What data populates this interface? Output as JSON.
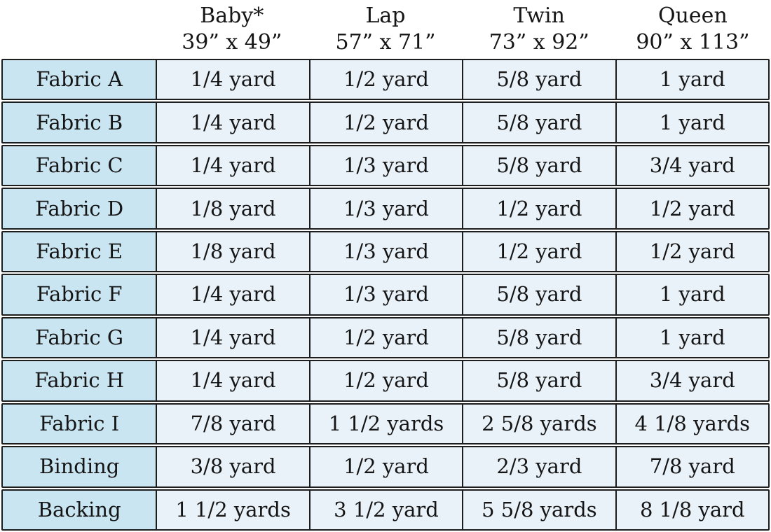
{
  "header": {
    "row_label_column": "",
    "columns": [
      {
        "name": "Baby*",
        "size": "39” x 49”"
      },
      {
        "name": "Lap",
        "size": "57” x 71”"
      },
      {
        "name": "Twin",
        "size": "73” x 92”"
      },
      {
        "name": "Queen",
        "size": "90” x 113”"
      }
    ]
  },
  "rows": [
    {
      "label": "Fabric A",
      "values": [
        "1/4 yard",
        "1/2 yard",
        "5/8 yard",
        "1 yard"
      ]
    },
    {
      "label": "Fabric B",
      "values": [
        "1/4 yard",
        "1/2 yard",
        "5/8 yard",
        "1 yard"
      ]
    },
    {
      "label": "Fabric C",
      "values": [
        "1/4 yard",
        "1/3 yard",
        "5/8 yard",
        "3/4 yard"
      ]
    },
    {
      "label": "Fabric D",
      "values": [
        "1/8 yard",
        "1/3 yard",
        "1/2 yard",
        "1/2 yard"
      ]
    },
    {
      "label": "Fabric E",
      "values": [
        "1/8 yard",
        "1/3 yard",
        "1/2 yard",
        "1/2 yard"
      ]
    },
    {
      "label": "Fabric F",
      "values": [
        "1/4 yard",
        "1/3 yard",
        "5/8 yard",
        "1 yard"
      ]
    },
    {
      "label": "Fabric G",
      "values": [
        "1/4 yard",
        "1/2 yard",
        "5/8 yard",
        "1 yard"
      ]
    },
    {
      "label": "Fabric H",
      "values": [
        "1/4 yard",
        "1/2 yard",
        "5/8 yard",
        "3/4 yard"
      ]
    },
    {
      "label": "Fabric I",
      "values": [
        "7/8 yard",
        "1 1/2 yards",
        "2 5/8 yards",
        "4 1/8 yards"
      ]
    },
    {
      "label": "Binding",
      "values": [
        "3/8 yard",
        "1/2 yard",
        "2/3 yard",
        "7/8 yard"
      ]
    },
    {
      "label": "Backing",
      "values": [
        "1 1/2 yards",
        "3 1/2 yard",
        "5 5/8 yards",
        "8 1/8 yard"
      ]
    }
  ],
  "colors": {
    "label_cell_bg": "#c9e5f2",
    "value_cell_bg": "#e9f2f9",
    "border": "#1d1d1d",
    "text": "#151515"
  },
  "chart_data": {
    "type": "table",
    "columns": [
      "",
      "Baby* 39” x 49”",
      "Lap 57” x 71”",
      "Twin 73” x 92”",
      "Queen 90” x 113”"
    ],
    "rows": [
      [
        "Fabric A",
        "1/4 yard",
        "1/2 yard",
        "5/8 yard",
        "1 yard"
      ],
      [
        "Fabric B",
        "1/4 yard",
        "1/2 yard",
        "5/8 yard",
        "1 yard"
      ],
      [
        "Fabric C",
        "1/4 yard",
        "1/3 yard",
        "5/8 yard",
        "3/4 yard"
      ],
      [
        "Fabric D",
        "1/8 yard",
        "1/3 yard",
        "1/2 yard",
        "1/2 yard"
      ],
      [
        "Fabric E",
        "1/8 yard",
        "1/3 yard",
        "1/2 yard",
        "1/2 yard"
      ],
      [
        "Fabric F",
        "1/4 yard",
        "1/3 yard",
        "5/8 yard",
        "1 yard"
      ],
      [
        "Fabric G",
        "1/4 yard",
        "1/2 yard",
        "5/8 yard",
        "1 yard"
      ],
      [
        "Fabric H",
        "1/4 yard",
        "1/2 yard",
        "5/8 yard",
        "3/4 yard"
      ],
      [
        "Fabric I",
        "7/8 yard",
        "1 1/2 yards",
        "2 5/8 yards",
        "4 1/8 yards"
      ],
      [
        "Binding",
        "3/8 yard",
        "1/2 yard",
        "2/3 yard",
        "7/8 yard"
      ],
      [
        "Backing",
        "1 1/2 yards",
        "3 1/2 yard",
        "5 5/8 yards",
        "8 1/8 yard"
      ]
    ],
    "title": "",
    "layout": {
      "row_label_column_highlighted": true,
      "grid": "on"
    }
  }
}
